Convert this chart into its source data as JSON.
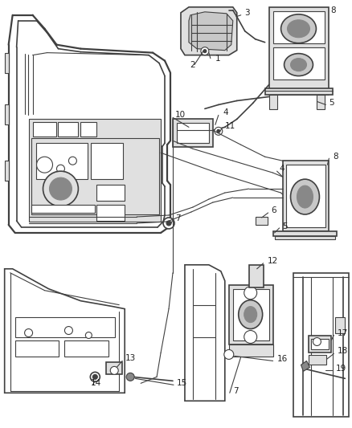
{
  "background_color": "#ffffff",
  "line_color": "#404040",
  "label_color": "#222222",
  "fig_width": 4.38,
  "fig_height": 5.33,
  "dpi": 100,
  "line_width": 0.8,
  "gray_fill": "#c8c8c8",
  "light_gray": "#e0e0e0",
  "dark_gray": "#888888"
}
